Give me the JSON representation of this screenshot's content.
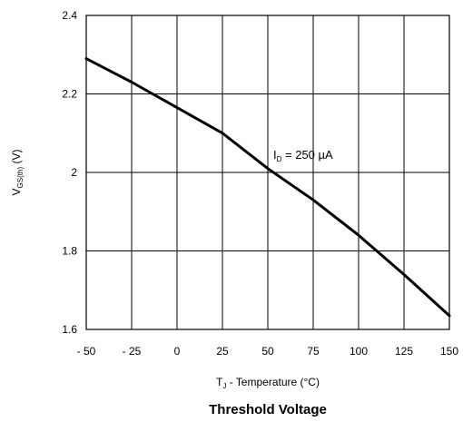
{
  "chart_data": {
    "type": "line",
    "title": "Threshold Voltage",
    "xlabel": {
      "prefix": "T",
      "sub": "J",
      "rest": " - Temperature (°C)"
    },
    "ylabel": {
      "prefix": "V",
      "sub": "GS(th)",
      "rest": " (V)"
    },
    "xlim": [
      -50,
      150
    ],
    "ylim": [
      1.6,
      2.4
    ],
    "xticks": [
      -50,
      -25,
      0,
      25,
      50,
      75,
      100,
      125,
      150
    ],
    "xtick_labels": [
      "- 50",
      "- 25",
      "0",
      "25",
      "50",
      "75",
      "100",
      "125",
      "150"
    ],
    "yticks": [
      1.6,
      1.8,
      2,
      2.2,
      2.4
    ],
    "ytick_labels": [
      "1.6",
      "1.8",
      "2",
      "2.2",
      "2.4"
    ],
    "grid": true,
    "series": [
      {
        "x": [
          -50,
          -25,
          0,
          25,
          50,
          75,
          100,
          125,
          150
        ],
        "y": [
          2.29,
          2.23,
          2.165,
          2.1,
          2.01,
          1.93,
          1.84,
          1.74,
          1.635
        ]
      }
    ],
    "annotation": {
      "prefix": "I",
      "sub": "D",
      "rest": " = 250 µA",
      "x": 53,
      "y": 2.035
    }
  }
}
